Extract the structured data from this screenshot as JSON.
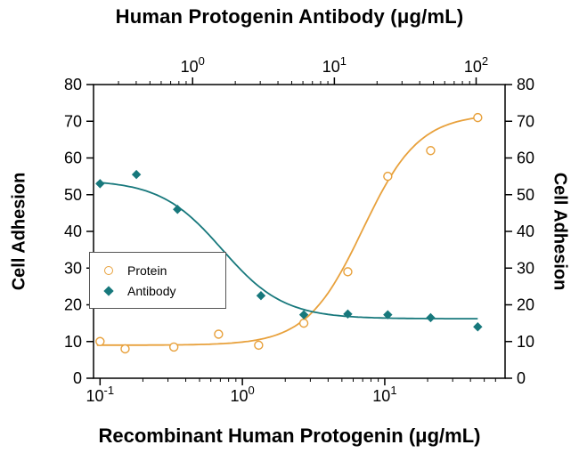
{
  "chart_data": {
    "type": "scatter",
    "title_top": "Human Protogenin Antibody (μg/mL)",
    "xlabel_bottom": "Recombinant Human Protogenin (μg/mL)",
    "ylabel_left": "Cell Adhesion",
    "ylabel_right": "Cell Adhesion",
    "grid": false,
    "y_axis": {
      "min": 0,
      "max": 80,
      "ticks": [
        0,
        10,
        20,
        30,
        40,
        50,
        60,
        70,
        80
      ]
    },
    "x_axis_bottom": {
      "scale": "log",
      "min": 0.09,
      "max": 70,
      "ticks": [
        0.1,
        1,
        10
      ]
    },
    "x_axis_top": {
      "scale": "log",
      "min": 0.2,
      "max": 160,
      "ticks": [
        1,
        10,
        100
      ]
    },
    "legend": {
      "position": "middle-left",
      "border": true
    },
    "series": [
      {
        "name": "Protein",
        "marker": "open-circle",
        "color": "#E8A13C",
        "points": [
          [
            0.1,
            10
          ],
          [
            0.15,
            8
          ],
          [
            0.33,
            8.5
          ],
          [
            0.68,
            12
          ],
          [
            1.3,
            9
          ],
          [
            2.7,
            15
          ],
          [
            5.5,
            29
          ],
          [
            10.5,
            55
          ],
          [
            21,
            62
          ],
          [
            45,
            71
          ]
        ],
        "fit_curve": {
          "model": "4PL",
          "min": 9,
          "max": 72,
          "ec50": 7,
          "hill": 2.2,
          "x_from": 0.095,
          "x_to": 48
        }
      },
      {
        "name": "Antibody",
        "marker": "filled-diamond",
        "color": "#17787C",
        "points": [
          [
            0.1,
            53
          ],
          [
            0.18,
            55.5
          ],
          [
            0.35,
            46
          ],
          [
            0.68,
            33
          ],
          [
            1.35,
            22.5
          ],
          [
            2.7,
            17.3
          ],
          [
            5.5,
            17.5
          ],
          [
            10.5,
            17.3
          ],
          [
            21,
            16.5
          ],
          [
            45,
            14
          ]
        ],
        "fit_curve": {
          "model": "4PL",
          "min": 16.2,
          "max": 54,
          "ec50": 0.72,
          "hill": -2,
          "x_from": 0.095,
          "x_to": 45
        }
      }
    ]
  }
}
